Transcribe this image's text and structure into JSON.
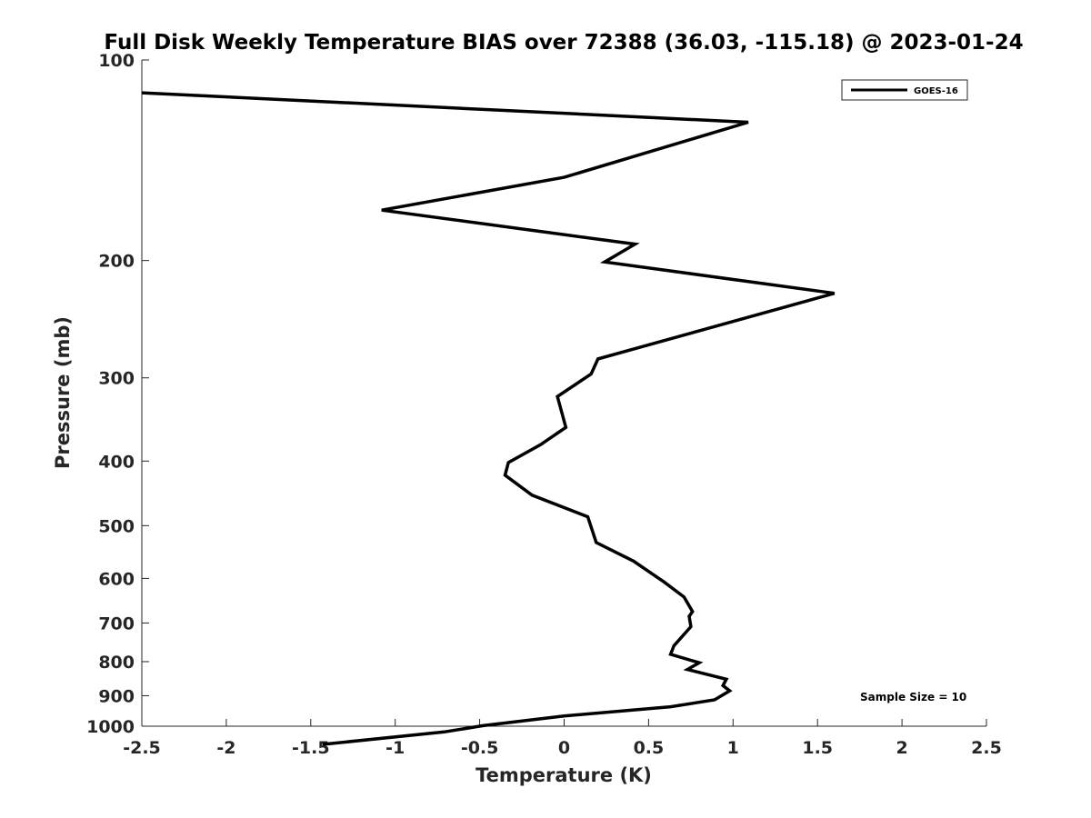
{
  "chart_data": {
    "type": "line",
    "title": "Full Disk Weekly Temperature BIAS over 72388 (36.03, -115.18) @ 2023-01-24",
    "xlabel": "Temperature (K)",
    "ylabel": "Pressure (mb)",
    "xlim": [
      -2.5,
      2.5
    ],
    "ylim": [
      100,
      1000
    ],
    "y_scale": "log",
    "y_reversed": true,
    "grid": false,
    "x_ticks": [
      -2.5,
      -2,
      -1.5,
      -1,
      -0.5,
      0,
      0.5,
      1,
      1.5,
      2,
      2.5
    ],
    "x_tick_labels": [
      "-2.5",
      "-2",
      "-1.5",
      "-1",
      "-0.5",
      "0",
      "0.5",
      "1",
      "1.5",
      "2",
      "2.5"
    ],
    "y_ticks": [
      100,
      200,
      300,
      400,
      500,
      600,
      700,
      800,
      900,
      1000
    ],
    "y_tick_labels": [
      "100",
      "200",
      "300",
      "400",
      "500",
      "600",
      "700",
      "800",
      "900",
      "1000"
    ],
    "legend": {
      "position": "top-right",
      "entries": [
        "GOES-16"
      ]
    },
    "annotation": "Sample Size = 10",
    "series": [
      {
        "name": "GOES-16",
        "color": "#000000",
        "points": [
          [
            -2.5,
            112
          ],
          [
            1.09,
            124
          ],
          [
            0.0,
            150
          ],
          [
            -1.08,
            168
          ],
          [
            0.42,
            189
          ],
          [
            0.24,
            201
          ],
          [
            1.6,
            224
          ],
          [
            0.2,
            281
          ],
          [
            0.16,
            296
          ],
          [
            -0.04,
            320
          ],
          [
            0.01,
            356
          ],
          [
            -0.14,
            378
          ],
          [
            -0.33,
            402
          ],
          [
            -0.35,
            420
          ],
          [
            -0.19,
            450
          ],
          [
            0.14,
            485
          ],
          [
            0.19,
            530
          ],
          [
            0.41,
            565
          ],
          [
            0.59,
            607
          ],
          [
            0.71,
            640
          ],
          [
            0.76,
            673
          ],
          [
            0.74,
            684
          ],
          [
            0.75,
            709
          ],
          [
            0.65,
            757
          ],
          [
            0.63,
            780
          ],
          [
            0.8,
            803
          ],
          [
            0.73,
            822
          ],
          [
            0.96,
            850
          ],
          [
            0.94,
            869
          ],
          [
            0.98,
            885
          ],
          [
            0.89,
            913
          ],
          [
            0.63,
            935
          ],
          [
            0.0,
            965
          ],
          [
            -0.48,
            998
          ],
          [
            -0.71,
            1020
          ],
          [
            -1.43,
            1065
          ]
        ]
      }
    ]
  }
}
